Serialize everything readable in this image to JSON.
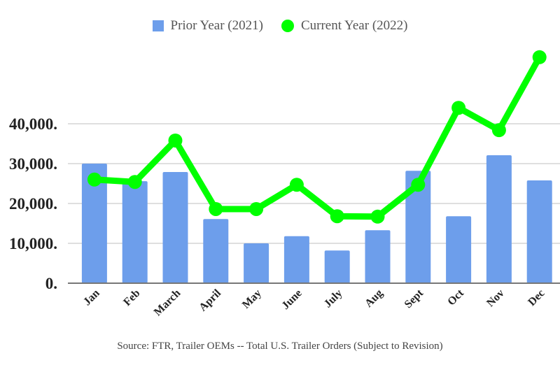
{
  "chart_data": {
    "type": "bar",
    "title": "",
    "xlabel": "",
    "ylabel": "",
    "categories": [
      "Jan",
      "Feb",
      "March",
      "April",
      "May",
      "June",
      "July",
      "Aug",
      "Sept",
      "Oct",
      "Nov",
      "Dec"
    ],
    "series": [
      {
        "name": "Prior Year (2021)",
        "type": "bar",
        "color": "#6d9eeb",
        "values": [
          30000,
          25600,
          27900,
          16100,
          10000,
          11800,
          8200,
          13300,
          28200,
          16800,
          32100,
          25800
        ]
      },
      {
        "name": "Current Year (2022)",
        "type": "line",
        "color": "#00ff00",
        "values": [
          26000,
          25400,
          35800,
          18600,
          18600,
          24700,
          16800,
          16700,
          24700,
          44000,
          38400,
          56700
        ]
      }
    ],
    "yticks": [
      0,
      10000,
      20000,
      30000,
      40000
    ],
    "ytick_labels": [
      "0.",
      "10,000.",
      "20,000.",
      "30,000.",
      "40,000."
    ],
    "ylim": [
      0,
      40000
    ],
    "grid": true,
    "legend_position": "top",
    "source": "Source: FTR, Trailer OEMs -- Total U.S. Trailer Orders (Subject to Revision)"
  }
}
